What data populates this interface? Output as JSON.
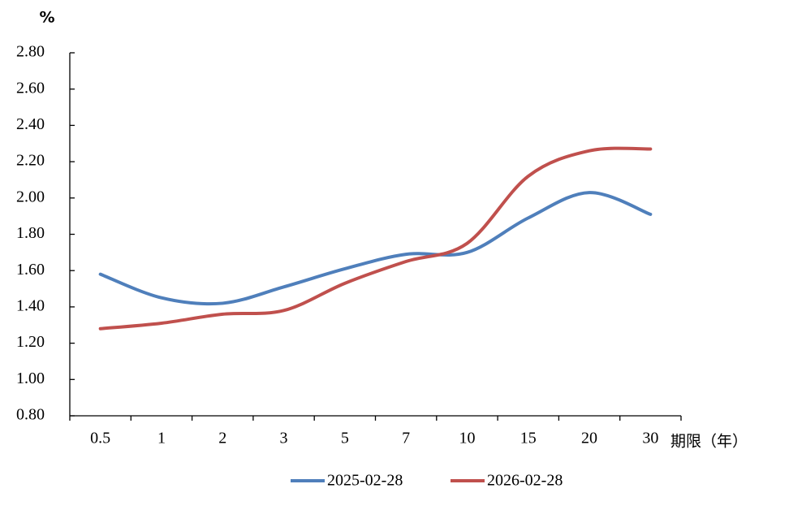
{
  "chart_data": {
    "type": "line",
    "y_unit": "%",
    "x_label": "期限（年）",
    "categories": [
      "0.5",
      "1",
      "2",
      "3",
      "5",
      "7",
      "10",
      "15",
      "20",
      "30"
    ],
    "series": [
      {
        "name": "2025-02-28",
        "color": "#4f7fbb",
        "values": [
          1.58,
          1.45,
          1.42,
          1.51,
          1.61,
          1.69,
          1.7,
          1.89,
          2.03,
          1.91
        ]
      },
      {
        "name": "2026-02-28",
        "color": "#c0504d",
        "values": [
          1.28,
          1.31,
          1.36,
          1.38,
          1.53,
          1.65,
          1.75,
          2.12,
          2.26,
          2.27
        ]
      }
    ],
    "ylim": [
      0.8,
      2.8
    ],
    "yticks": [
      {
        "value": 0.8,
        "label": "0.80"
      },
      {
        "value": 1.0,
        "label": "1.00"
      },
      {
        "value": 1.2,
        "label": "1.20"
      },
      {
        "value": 1.4,
        "label": "1.40"
      },
      {
        "value": 1.6,
        "label": "1.60"
      },
      {
        "value": 1.8,
        "label": "1.80"
      },
      {
        "value": 2.0,
        "label": "2.00"
      },
      {
        "value": 2.2,
        "label": "2.20"
      },
      {
        "value": 2.4,
        "label": "2.40"
      },
      {
        "value": 2.6,
        "label": "2.60"
      },
      {
        "value": 2.8,
        "label": "2.80"
      }
    ],
    "smooth": true
  }
}
